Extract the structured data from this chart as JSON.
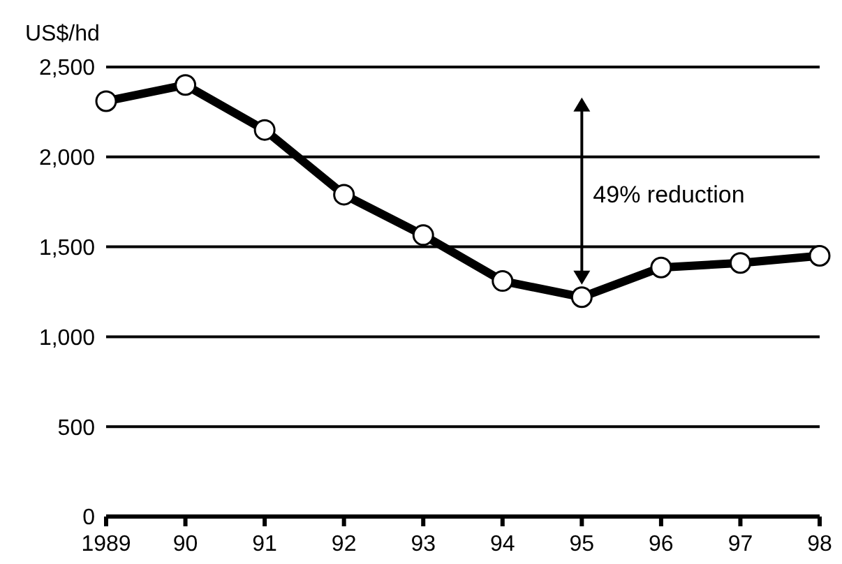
{
  "chart_data": {
    "type": "line",
    "ylabel": "US$/hd",
    "categories": [
      "1989",
      "90",
      "91",
      "92",
      "93",
      "94",
      "95",
      "96",
      "97",
      "98"
    ],
    "series": [
      {
        "color": "#000000",
        "values": [
          2310,
          2400,
          2150,
          1790,
          1565,
          1310,
          1220,
          1385,
          1410,
          1450
        ]
      }
    ],
    "ylim": [
      0,
      2500
    ],
    "yticks": [
      {
        "value": 0,
        "label": "0"
      },
      {
        "value": 500,
        "label": "500"
      },
      {
        "value": 1000,
        "label": "1,000"
      },
      {
        "value": 1500,
        "label": "1,500"
      },
      {
        "value": 2000,
        "label": "2,000"
      },
      {
        "value": 2500,
        "label": "2,500"
      }
    ],
    "grid": "y",
    "marker": "circle",
    "line_style": "solid",
    "annotations": [
      "49% reduction"
    ]
  }
}
